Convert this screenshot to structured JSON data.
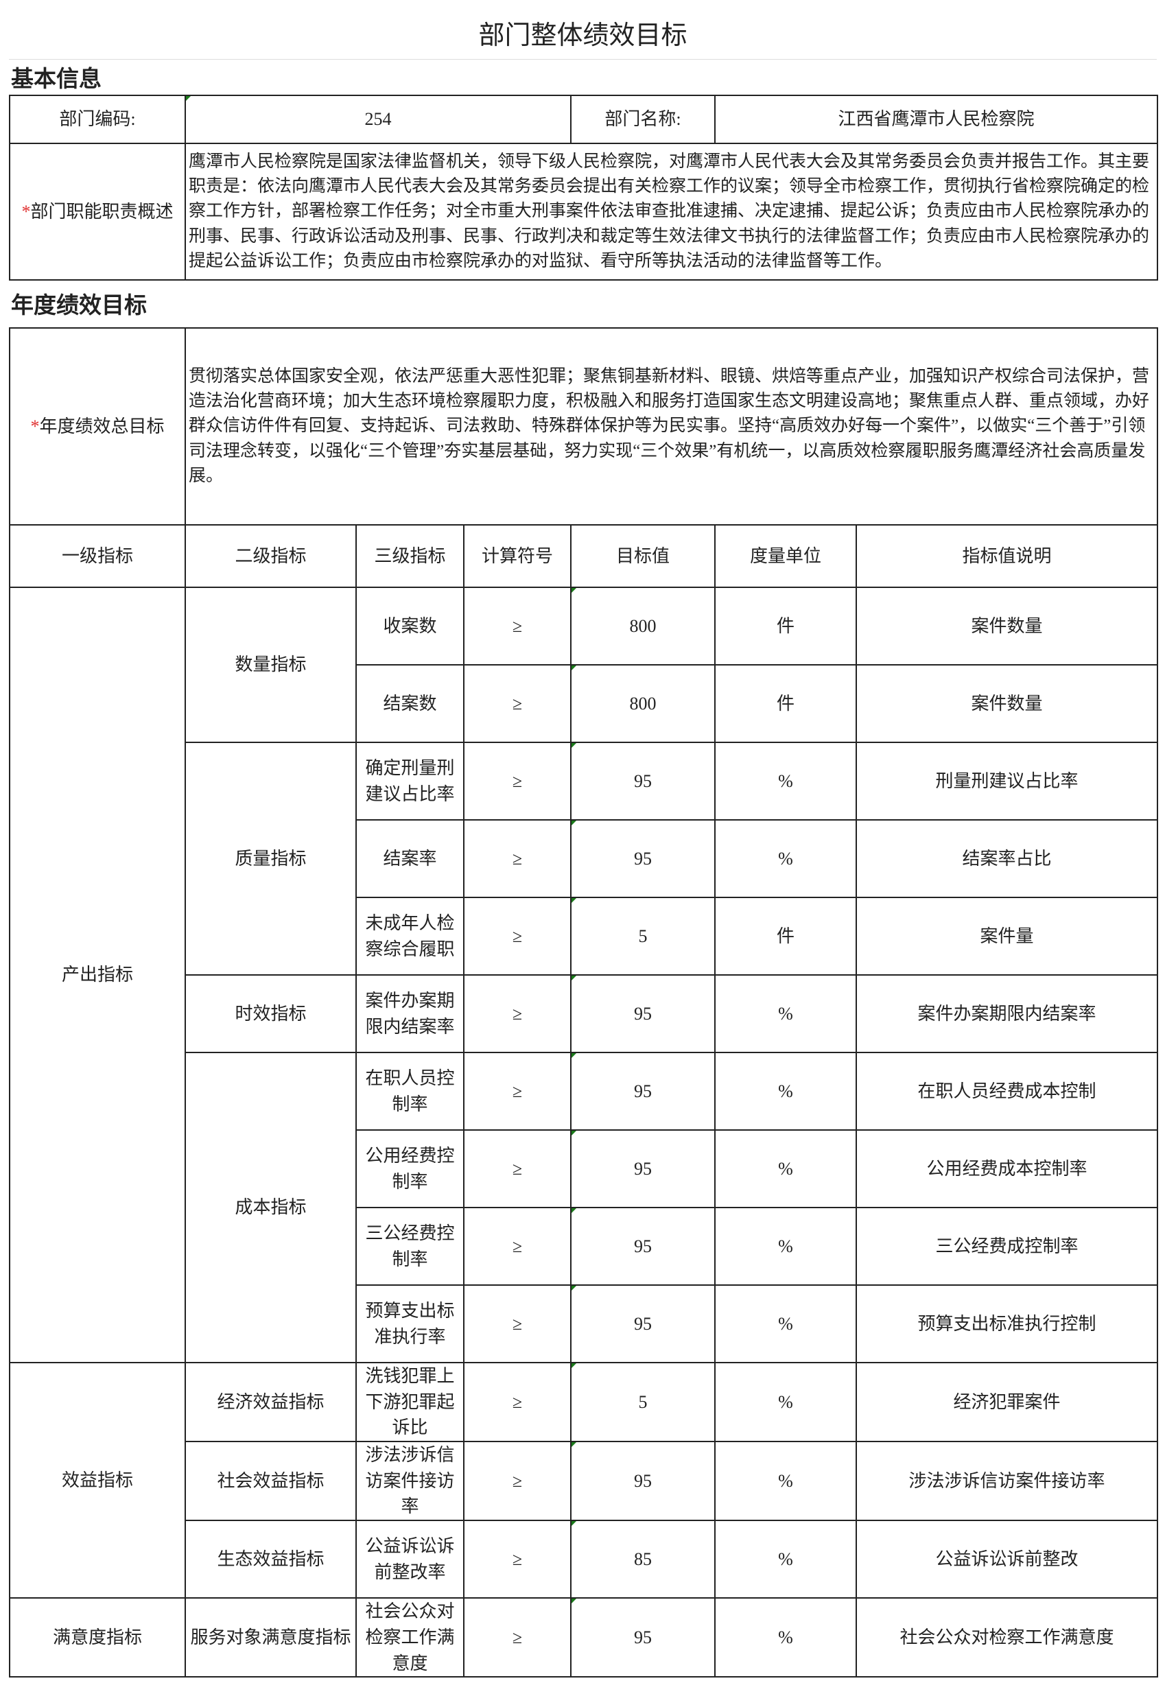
{
  "title": "部门整体绩效目标",
  "basic_info": {
    "section_label": "基本信息",
    "dept_code_label": "部门编码:",
    "dept_code": "254",
    "dept_name_label": "部门名称:",
    "dept_name": "江西省鹰潭市人民检察院",
    "duty_label_mark": "*",
    "duty_label": "部门职能职责概述",
    "duty_text": "鹰潭市人民检察院是国家法律监督机关，领导下级人民检察院，对鹰潭市人民代表大会及其常务委员会负责并报告工作。其主要职责是：依法向鹰潭市人民代表大会及其常务委员会提出有关检察工作的议案；领导全市检察工作，贯彻执行省检察院确定的检察工作方针，部署检察工作任务；对全市重大刑事案件依法审查批准逮捕、决定逮捕、提起公诉；负责应由市人民检察院承办的刑事、民事、行政诉讼活动及刑事、民事、行政判决和裁定等生效法律文书执行的法律监督工作；负责应由市人民检察院承办的提起公益诉讼工作；负责应由市检察院承办的对监狱、看守所等执法活动的法律监督等工作。"
  },
  "annual": {
    "section_label": "年度绩效目标",
    "goal_label_mark": "*",
    "goal_label": "年度绩效总目标",
    "goal_text": "贯彻落实总体国家安全观，依法严惩重大恶性犯罪；聚焦铜基新材料、眼镜、烘焙等重点产业，加强知识产权综合司法保护，营造法治化营商环境；加大生态环境检察履职力度，积极融入和服务打造国家生态文明建设高地；聚焦重点人群、重点领域，办好群众信访件件有回复、支持起诉、司法救助、特殊群体保护等为民实事。坚持“高质效办好每一个案件”，以做实“三个善于”引领司法理念转变，以强化“三个管理”夯实基层基础，努力实现“三个效果”有机统一，以高质效检察履职服务鹰潭经济社会高质量发展。"
  },
  "indicators": {
    "headers": [
      "一级指标",
      "二级指标",
      "三级指标",
      "计算符号",
      "目标值",
      "度量单位",
      "指标值说明"
    ],
    "groups": [
      {
        "level1": "产出指标",
        "subs": [
          {
            "level2": "数量指标",
            "rows": [
              {
                "level3": "收案数",
                "op": "≥",
                "target": "800",
                "unit": "件",
                "desc": "案件数量"
              },
              {
                "level3": "结案数",
                "op": "≥",
                "target": "800",
                "unit": "件",
                "desc": "案件数量"
              }
            ]
          },
          {
            "level2": "质量指标",
            "rows": [
              {
                "level3": "确定刑量刑建议占比率",
                "op": "≥",
                "target": "95",
                "unit": "%",
                "desc": "刑量刑建议占比率"
              },
              {
                "level3": "结案率",
                "op": "≥",
                "target": "95",
                "unit": "%",
                "desc": "结案率占比"
              },
              {
                "level3": "未成年人检察综合履职",
                "op": "≥",
                "target": "5",
                "unit": "件",
                "desc": "案件量"
              }
            ]
          },
          {
            "level2": "时效指标",
            "rows": [
              {
                "level3": "案件办案期限内结案率",
                "op": "≥",
                "target": "95",
                "unit": "%",
                "desc": "案件办案期限内结案率"
              }
            ]
          },
          {
            "level2": "成本指标",
            "rows": [
              {
                "level3": "在职人员控制率",
                "op": "≥",
                "target": "95",
                "unit": "%",
                "desc": "在职人员经费成本控制"
              },
              {
                "level3": "公用经费控制率",
                "op": "≥",
                "target": "95",
                "unit": "%",
                "desc": "公用经费成本控制率"
              },
              {
                "level3": "三公经费控制率",
                "op": "≥",
                "target": "95",
                "unit": "%",
                "desc": "三公经费成控制率"
              },
              {
                "level3": "预算支出标准执行率",
                "op": "≥",
                "target": "95",
                "unit": "%",
                "desc": "预算支出标准执行控制"
              }
            ]
          }
        ]
      },
      {
        "level1": "效益指标",
        "subs": [
          {
            "level2": "经济效益指标",
            "rows": [
              {
                "level3": "洗钱犯罪上下游犯罪起诉比",
                "op": "≥",
                "target": "5",
                "unit": "%",
                "desc": "经济犯罪案件"
              }
            ]
          },
          {
            "level2": "社会效益指标",
            "rows": [
              {
                "level3": "涉法涉诉信访案件接访率",
                "op": "≥",
                "target": "95",
                "unit": "%",
                "desc": "涉法涉诉信访案件接访率"
              }
            ]
          },
          {
            "level2": "生态效益指标",
            "rows": [
              {
                "level3": "公益诉讼诉前整改率",
                "op": "≥",
                "target": "85",
                "unit": "%",
                "desc": "公益诉讼诉前整改"
              }
            ]
          }
        ]
      },
      {
        "level1": "满意度指标",
        "subs": [
          {
            "level2": "服务对象满意度指标",
            "rows": [
              {
                "level3": "社会公众对检察工作满意度",
                "op": "≥",
                "target": "95",
                "unit": "%",
                "desc": "社会公众对检察工作满意度"
              }
            ]
          }
        ]
      }
    ]
  }
}
